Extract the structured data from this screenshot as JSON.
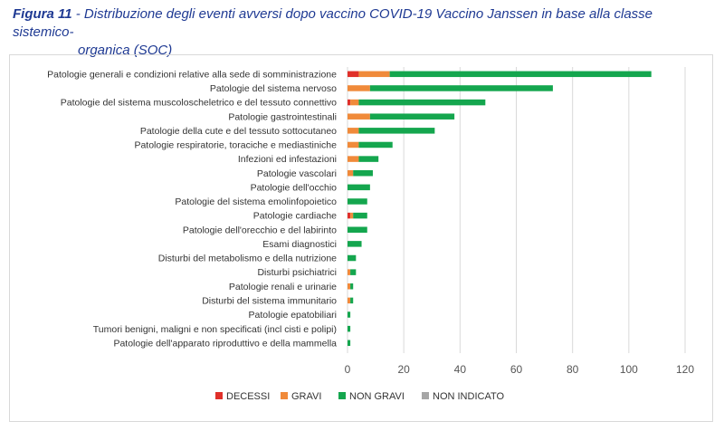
{
  "figure": {
    "lead": "Figura 11",
    "text_line1": " - Distribuzione degli eventi avversi dopo vaccino COVID-19 Vaccino Janssen in base alla classe sistemico-",
    "text_line2": "organica (SOC)"
  },
  "chart_data": {
    "type": "bar",
    "orientation": "horizontal",
    "stacked": true,
    "categories": [
      "Patologie generali e condizioni relative alla sede di somministrazione",
      "Patologie del sistema nervoso",
      "Patologie del sistema muscoloscheletrico e del tessuto connettivo",
      "Patologie gastrointestinali",
      "Patologie della cute e del tessuto sottocutaneo",
      "Patologie respiratorie, toraciche e mediastiniche",
      "Infezioni ed infestazioni",
      "Patologie vascolari",
      "Patologie dell'occhio",
      "Patologie del sistema emolinfopoietico",
      "Patologie cardiache",
      "Patologie dell'orecchio e del labirinto",
      "Esami diagnostici",
      "Disturbi del metabolismo e della nutrizione",
      "Disturbi psichiatrici",
      "Patologie renali e urinarie",
      "Disturbi del sistema immunitario",
      "Patologie epatobiliari",
      "Tumori benigni, maligni e non specificati (incl cisti e polipi)",
      "Patologie dell'apparato riproduttivo e della mammella"
    ],
    "series": [
      {
        "name": "DECESSI",
        "color": "#e0302a",
        "values": [
          4,
          0,
          1,
          0,
          0,
          0,
          0,
          0,
          0,
          0,
          1,
          0,
          0,
          0,
          0,
          0,
          0,
          0,
          0,
          0
        ]
      },
      {
        "name": "GRAVI",
        "color": "#f08a3a",
        "values": [
          11,
          8,
          3,
          8,
          4,
          4,
          4,
          2,
          0,
          0,
          1,
          0,
          0,
          0,
          1,
          1,
          1,
          0,
          0,
          0
        ]
      },
      {
        "name": "NON GRAVI",
        "color": "#14a64e",
        "values": [
          93,
          65,
          45,
          30,
          27,
          12,
          7,
          7,
          8,
          7,
          5,
          7,
          5,
          3,
          2,
          1,
          1,
          1,
          1,
          1
        ]
      },
      {
        "name": "NON INDICATO",
        "color": "#a6a6a6",
        "values": [
          0,
          0,
          0,
          0,
          0,
          0,
          0,
          0,
          0,
          0,
          0,
          0,
          0,
          0,
          0,
          0,
          0,
          0,
          0,
          0
        ]
      }
    ],
    "xlim": [
      0,
      120
    ],
    "xticks": [
      0,
      20,
      40,
      60,
      80,
      100,
      120
    ],
    "grid": true,
    "legend_position": "bottom"
  }
}
